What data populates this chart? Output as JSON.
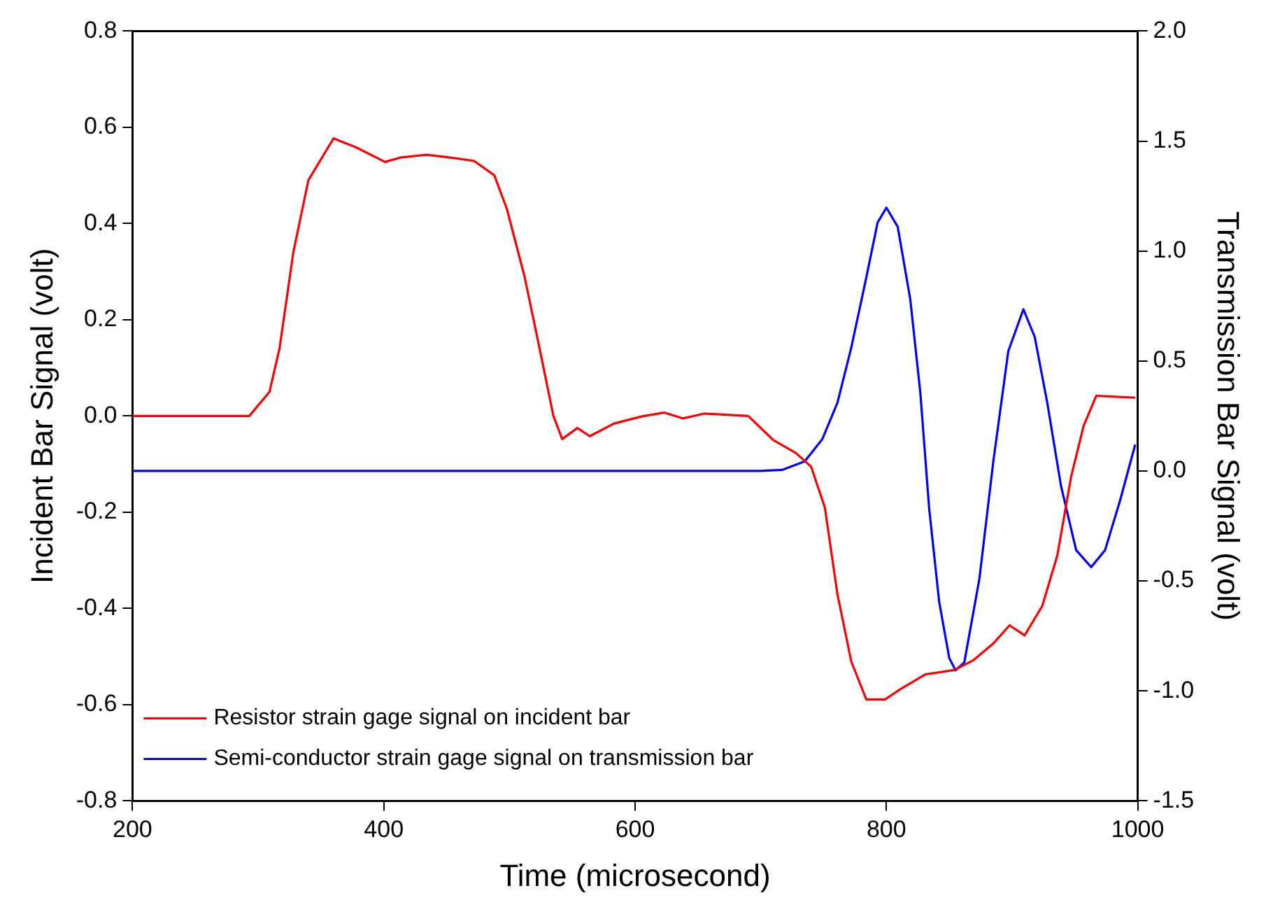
{
  "chart_data": {
    "type": "line",
    "xlabel": "Time (microsecond)",
    "ylabel": "Incident Bar Signal (volt)",
    "y2label": "Transmission Bar Signal (volt)",
    "xlim": [
      200,
      1000
    ],
    "xticks": [
      200,
      400,
      600,
      800,
      1000
    ],
    "ylim": [
      -0.8,
      0.8
    ],
    "yticks": [
      -0.8,
      -0.6,
      -0.4,
      -0.2,
      {
        "value": 0,
        "label": "0.0"
      },
      0.2,
      0.4,
      0.6,
      0.8
    ],
    "y2lim": [
      -1.5,
      2.0
    ],
    "y2ticks": [
      -1.5,
      {
        "value": -1,
        "label": "-1.0"
      },
      -0.5,
      {
        "value": 0,
        "label": "0.0"
      },
      0.5,
      {
        "value": 1,
        "label": "1.0"
      },
      1.5,
      {
        "value": 2,
        "label": "2.0"
      }
    ],
    "grid": false,
    "legend": "bottom left",
    "marker": "none",
    "line_style": "solid",
    "series": [
      {
        "name": "Resistor strain gage signal on incident bar",
        "color": "#ff0000",
        "x": [
          200,
          250,
          293,
          309,
          317,
          328,
          340,
          360,
          379,
          401,
          413,
          434,
          453,
          472,
          488,
          498,
          512,
          524,
          535,
          542,
          554,
          564,
          583,
          605,
          623,
          638,
          655,
          690,
          710,
          728,
          740,
          751,
          761,
          772,
          784,
          799,
          811,
          831,
          854,
          869,
          885,
          898,
          910,
          924,
          936,
          947,
          957,
          967,
          982,
          998
        ],
        "values": [
          0,
          0,
          0,
          0.05,
          0.14,
          0.34,
          0.49,
          0.577,
          0.557,
          0.528,
          0.537,
          0.543,
          0.537,
          0.53,
          0.5,
          0.43,
          0.29,
          0.14,
          0,
          -0.048,
          -0.025,
          -0.042,
          -0.016,
          -0.001,
          0.007,
          -0.005,
          0.005,
          0,
          -0.05,
          -0.077,
          -0.105,
          -0.19,
          -0.37,
          -0.51,
          -0.589,
          -0.589,
          -0.568,
          -0.537,
          -0.528,
          -0.508,
          -0.473,
          -0.435,
          -0.456,
          -0.395,
          -0.29,
          -0.126,
          -0.02,
          0.042,
          0.04,
          0.038
        ]
      },
      {
        "name": "Semi-conductor strain gage signal on transmission bar",
        "color": "#0000ff",
        "axis": "y2",
        "x": [
          200,
          400,
          600,
          700,
          717,
          735,
          749,
          761,
          772,
          784,
          793,
          800,
          809,
          819,
          827,
          834,
          842,
          850,
          855,
          862,
          874,
          885,
          897,
          909,
          918,
          928,
          939,
          951,
          963,
          974,
          986,
          998
        ],
        "values": [
          0,
          0,
          0,
          0,
          0.005,
          0.044,
          0.145,
          0.31,
          0.56,
          0.88,
          1.13,
          1.197,
          1.11,
          0.78,
          0.355,
          -0.17,
          -0.595,
          -0.85,
          -0.906,
          -0.87,
          -0.49,
          0.04,
          0.545,
          0.735,
          0.61,
          0.31,
          -0.07,
          -0.36,
          -0.437,
          -0.36,
          -0.133,
          0.12
        ]
      }
    ]
  }
}
